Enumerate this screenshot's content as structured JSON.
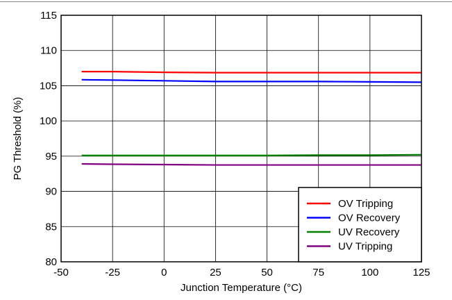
{
  "chart_data": {
    "type": "line",
    "title": "",
    "xlabel": "Junction Temperature (°C)",
    "ylabel": "PG Threshold (%)",
    "xlim": [
      -50,
      125
    ],
    "ylim": [
      80,
      115
    ],
    "xticks": [
      -50,
      -25,
      0,
      25,
      50,
      75,
      100,
      125
    ],
    "yticks": [
      80,
      85,
      90,
      95,
      100,
      105,
      110,
      115
    ],
    "xtick_labels": [
      "-50",
      "-25",
      "0",
      "25",
      "50",
      "75",
      "100",
      "125"
    ],
    "ytick_labels": [
      "80",
      "85",
      "90",
      "95",
      "100",
      "105",
      "110",
      "115"
    ],
    "grid": true,
    "legend_position": "bottom-right",
    "series": [
      {
        "name": "OV Tripping",
        "color": "#ff0000",
        "x": [
          -40,
          -25,
          0,
          25,
          50,
          75,
          100,
          125
        ],
        "y": [
          107.0,
          107.0,
          106.9,
          106.85,
          106.85,
          106.85,
          106.85,
          106.85
        ]
      },
      {
        "name": "OV Recovery",
        "color": "#0000ff",
        "x": [
          -40,
          -25,
          0,
          25,
          50,
          75,
          100,
          125
        ],
        "y": [
          105.85,
          105.8,
          105.7,
          105.6,
          105.6,
          105.6,
          105.55,
          105.5
        ]
      },
      {
        "name": "UV Recovery",
        "color": "#008000",
        "x": [
          -40,
          -25,
          0,
          25,
          50,
          75,
          100,
          125
        ],
        "y": [
          95.1,
          95.1,
          95.1,
          95.1,
          95.1,
          95.15,
          95.15,
          95.2
        ]
      },
      {
        "name": "UV Tripping",
        "color": "#800080",
        "x": [
          -40,
          -25,
          0,
          25,
          50,
          75,
          100,
          125
        ],
        "y": [
          93.9,
          93.85,
          93.8,
          93.75,
          93.75,
          93.75,
          93.75,
          93.75
        ]
      }
    ]
  }
}
